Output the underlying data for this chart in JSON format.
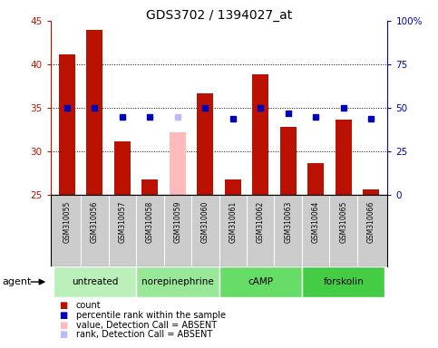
{
  "title": "GDS3702 / 1394027_at",
  "samples": [
    "GSM310055",
    "GSM310056",
    "GSM310057",
    "GSM310058",
    "GSM310059",
    "GSM310060",
    "GSM310061",
    "GSM310062",
    "GSM310063",
    "GSM310064",
    "GSM310065",
    "GSM310066"
  ],
  "bar_values": [
    41.2,
    44.0,
    31.2,
    26.8,
    32.2,
    36.7,
    26.8,
    38.9,
    32.8,
    28.7,
    33.6,
    25.6
  ],
  "bar_absent": [
    false,
    false,
    false,
    false,
    true,
    false,
    false,
    false,
    false,
    false,
    false,
    false
  ],
  "dot_values_right": [
    50.0,
    50.0,
    45.0,
    45.0,
    45.0,
    50.0,
    44.0,
    50.0,
    47.0,
    45.0,
    50.0,
    44.0
  ],
  "dot_absent": [
    false,
    false,
    false,
    false,
    true,
    false,
    false,
    false,
    false,
    false,
    false,
    false
  ],
  "ylim_left": [
    25,
    45
  ],
  "ylim_right": [
    0,
    100
  ],
  "yticks_left": [
    25,
    30,
    35,
    40,
    45
  ],
  "yticks_right": [
    0,
    25,
    50,
    75,
    100
  ],
  "ytick_labels_right": [
    "0",
    "25",
    "50",
    "75",
    "100%"
  ],
  "hgrid_lines": [
    30,
    35,
    40
  ],
  "group_data": [
    {
      "label": "untreated",
      "start": 0,
      "end": 2,
      "color": "#bbf0bb"
    },
    {
      "label": "norepinephrine",
      "start": 3,
      "end": 5,
      "color": "#99e899"
    },
    {
      "label": "cAMP",
      "start": 6,
      "end": 8,
      "color": "#66dd66"
    },
    {
      "label": "forskolin",
      "start": 9,
      "end": 11,
      "color": "#44cc44"
    }
  ],
  "bar_color_normal": "#bb1100",
  "bar_color_absent": "#ffbbbb",
  "dot_color_normal": "#0000bb",
  "dot_color_absent": "#bbbbff",
  "plot_bg": "#ffffff",
  "sample_bg": "#cccccc",
  "agent_label": "agent",
  "legend_items": [
    {
      "color": "#bb1100",
      "label": "count"
    },
    {
      "color": "#0000bb",
      "label": "percentile rank within the sample"
    },
    {
      "color": "#ffbbbb",
      "label": "value, Detection Call = ABSENT"
    },
    {
      "color": "#bbbbff",
      "label": "rank, Detection Call = ABSENT"
    }
  ]
}
